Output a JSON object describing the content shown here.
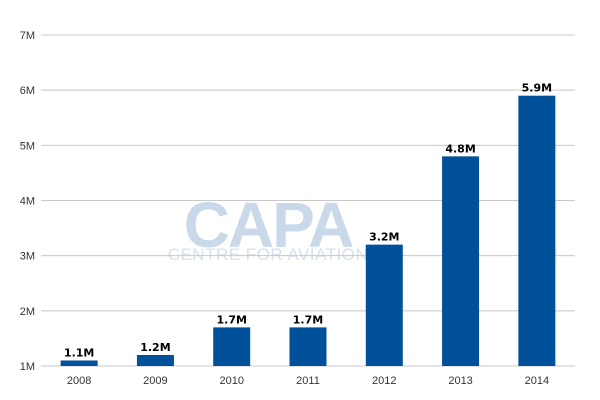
{
  "chart_data": {
    "type": "bar",
    "categories": [
      "2008",
      "2009",
      "2010",
      "2011",
      "2012",
      "2013",
      "2014"
    ],
    "values": [
      1.1,
      1.2,
      1.7,
      1.7,
      3.2,
      4.8,
      5.9
    ],
    "value_unit": "M",
    "data_labels": [
      "1.1M",
      "1.2M",
      "1.7M",
      "1.7M",
      "3.2M",
      "4.8M",
      "5.9M"
    ],
    "y_ticks": [
      1,
      2,
      3,
      4,
      5,
      6,
      7
    ],
    "y_tick_labels": [
      "1M",
      "2M",
      "3M",
      "4M",
      "5M",
      "6M",
      "7M"
    ],
    "ylim": [
      1,
      7
    ],
    "grid": true,
    "legend": "none",
    "bar_color": "#00519a",
    "grid_color": "#c8c8c8",
    "watermark": {
      "main": "CAPA",
      "sub": "CENTRE FOR AVIATION"
    }
  }
}
